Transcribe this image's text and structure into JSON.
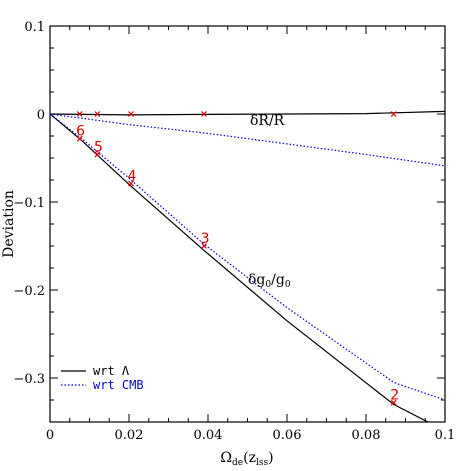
{
  "chart_data": {
    "type": "line",
    "xlabel": "Ω_de(z_lss)",
    "xlabel_main": "Ω",
    "xlabel_sub": "de",
    "xlabel_args": "(z",
    "xlabel_args_sub": "lss",
    "xlabel_close": ")",
    "ylabel": "Deviation",
    "xlim": [
      0,
      0.1
    ],
    "ylim": [
      -0.35,
      0.1
    ],
    "x_ticks": [
      0,
      0.02,
      0.04,
      0.06,
      0.08,
      0.1
    ],
    "x_tick_labels": [
      "0",
      "0.02",
      "0.04",
      "0.06",
      "0.08",
      "0.1"
    ],
    "y_ticks": [
      0.1,
      0,
      -0.1,
      -0.2,
      -0.3
    ],
    "y_tick_labels": [
      "0.1",
      "0",
      "−0.1",
      "−0.2",
      "−0.3"
    ],
    "series": [
      {
        "name": "wrt Λ",
        "color": "#000000",
        "style": "solid",
        "curves": [
          {
            "annotation": "δR/R",
            "x": [
              0,
              0.02,
              0.04,
              0.06,
              0.08,
              0.1
            ],
            "y": [
              0,
              -0.001,
              -0.0005,
              0,
              0.0005,
              0.003
            ]
          },
          {
            "annotation": "δg0/g0",
            "x": [
              0,
              0.008,
              0.02,
              0.039,
              0.06,
              0.087,
              0.1
            ],
            "y": [
              0,
              -0.03,
              -0.08,
              -0.155,
              -0.235,
              -0.33,
              -0.36
            ]
          }
        ]
      },
      {
        "name": "wrt CMB",
        "color": "#0000cc",
        "style": "dotted",
        "curves": [
          {
            "x": [
              0,
              0.02,
              0.04,
              0.06,
              0.08,
              0.1
            ],
            "y": [
              0,
              -0.012,
              -0.022,
              -0.034,
              -0.046,
              -0.059
            ]
          },
          {
            "x": [
              0,
              0.008,
              0.02,
              0.039,
              0.06,
              0.087,
              0.1
            ],
            "y": [
              0,
              -0.028,
              -0.073,
              -0.148,
              -0.22,
              -0.305,
              -0.325
            ]
          }
        ]
      }
    ],
    "markers": {
      "color": "#e00000",
      "upper": {
        "x": [
          0.0075,
          0.012,
          0.0205,
          0.039,
          0.087
        ],
        "y": [
          0,
          0,
          0,
          0,
          0
        ]
      },
      "lower": [
        {
          "label": "6",
          "x": 0.0075,
          "y": -0.028
        },
        {
          "label": "5",
          "x": 0.012,
          "y": -0.046
        },
        {
          "label": "4",
          "x": 0.0205,
          "y": -0.079
        },
        {
          "label": "3",
          "x": 0.039,
          "y": -0.15
        },
        {
          "label": "2",
          "x": 0.087,
          "y": -0.328
        }
      ]
    },
    "annotations": [
      {
        "text": "δR/R"
      },
      {
        "text_main": "δg",
        "sub1": "0",
        "slash": "/g",
        "sub2": "0"
      }
    ],
    "legend": {
      "placement": "bottom-left",
      "entries": [
        "wrt Λ",
        "wrt CMB"
      ]
    }
  }
}
